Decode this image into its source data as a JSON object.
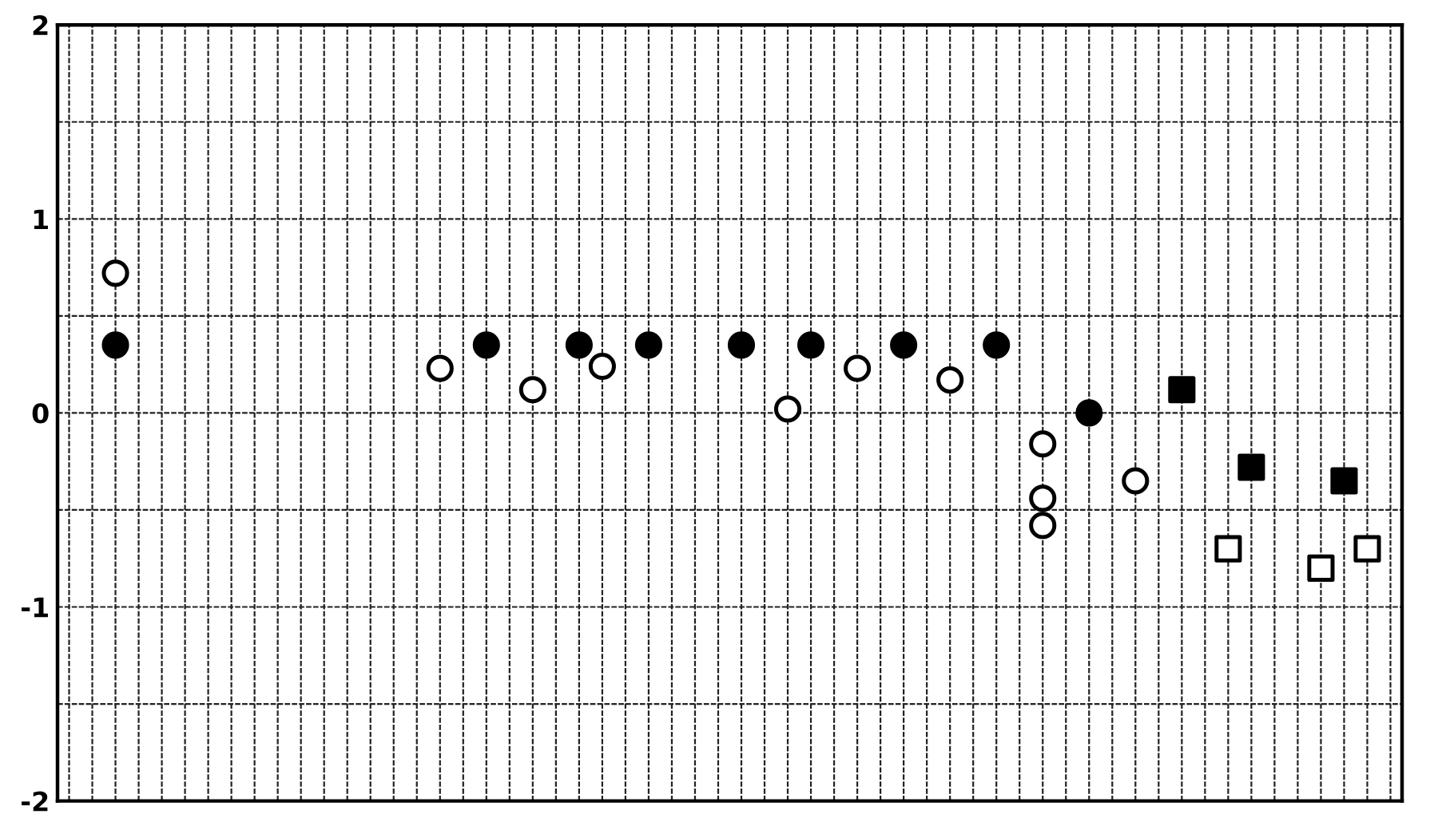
{
  "chart_data": {
    "type": "scatter",
    "categories": [
      null,
      null,
      null,
      null,
      null,
      null,
      null,
      null,
      null,
      null,
      null,
      null,
      null,
      null,
      null,
      null,
      null,
      null,
      null,
      null,
      null,
      null,
      null,
      null,
      null,
      null,
      null,
      null,
      null,
      null,
      null,
      null,
      null,
      null,
      null,
      null,
      null,
      null,
      null,
      null,
      null,
      null,
      null,
      null,
      null,
      null,
      null,
      null,
      null,
      null,
      null,
      null,
      null,
      null,
      null,
      null,
      null,
      null
    ],
    "series": [
      {
        "color": "#000000",
        "marker": "circle",
        "values": [
          null,
          null,
          0.35,
          null,
          null,
          null,
          null,
          null,
          null,
          null,
          null,
          null,
          null,
          null,
          null,
          null,
          null,
          null,
          0.35,
          null,
          null,
          null,
          0.35,
          null,
          null,
          0.35,
          null,
          null,
          null,
          0.35,
          null,
          null,
          0.35,
          null,
          null,
          null,
          0.35,
          null,
          null,
          null,
          0.35,
          null,
          null,
          null,
          0.0,
          null,
          null,
          null,
          null,
          null,
          null,
          null,
          null,
          null,
          null,
          null,
          null,
          null
        ]
      },
      {
        "color": "#000000",
        "marker": "square",
        "values": [
          null,
          null,
          null,
          null,
          null,
          null,
          null,
          null,
          null,
          null,
          null,
          null,
          null,
          null,
          null,
          null,
          null,
          null,
          null,
          null,
          null,
          null,
          null,
          null,
          null,
          null,
          null,
          null,
          null,
          null,
          null,
          null,
          null,
          null,
          null,
          null,
          null,
          null,
          null,
          null,
          null,
          null,
          null,
          null,
          null,
          null,
          null,
          null,
          0.12,
          null,
          null,
          -0.28,
          null,
          null,
          null,
          -0.35,
          null,
          null
        ]
      },
      {
        "color": "#ffffff",
        "marker": "circle",
        "values": [
          null,
          null,
          0.72,
          null,
          null,
          null,
          null,
          null,
          null,
          null,
          null,
          null,
          null,
          null,
          null,
          null,
          0.23,
          null,
          null,
          null,
          0.12,
          null,
          null,
          0.24,
          null,
          null,
          null,
          null,
          null,
          null,
          null,
          0.02,
          null,
          null,
          0.23,
          null,
          null,
          null,
          0.17,
          null,
          null,
          null,
          -0.16,
          null,
          null,
          null,
          -0.35,
          null,
          null,
          null,
          null,
          null,
          null,
          null,
          null,
          null,
          null,
          null
        ]
      },
      {
        "color": "#ffffff",
        "marker": "circle",
        "values": [
          null,
          null,
          null,
          null,
          null,
          null,
          null,
          null,
          null,
          null,
          null,
          null,
          null,
          null,
          null,
          null,
          null,
          null,
          null,
          null,
          null,
          null,
          null,
          null,
          null,
          null,
          null,
          null,
          null,
          null,
          null,
          null,
          null,
          null,
          null,
          null,
          null,
          null,
          null,
          null,
          null,
          null,
          -0.44,
          null,
          null,
          null,
          null,
          null,
          null,
          null,
          null,
          null,
          null,
          null,
          null,
          null,
          null,
          null
        ]
      },
      {
        "color": "#ffffff",
        "marker": "circle",
        "values": [
          null,
          null,
          null,
          null,
          null,
          null,
          null,
          null,
          null,
          null,
          null,
          null,
          null,
          null,
          null,
          null,
          null,
          null,
          null,
          null,
          null,
          null,
          null,
          null,
          null,
          null,
          null,
          null,
          null,
          null,
          null,
          null,
          null,
          null,
          null,
          null,
          null,
          null,
          null,
          null,
          null,
          null,
          -0.58,
          null,
          null,
          null,
          null,
          null,
          null,
          null,
          null,
          null,
          null,
          null,
          null,
          null,
          null,
          null
        ]
      },
      {
        "color": "#ffffff",
        "marker": "square",
        "values": [
          null,
          null,
          null,
          null,
          null,
          null,
          null,
          null,
          null,
          null,
          null,
          null,
          null,
          null,
          null,
          null,
          null,
          null,
          null,
          null,
          null,
          null,
          null,
          null,
          null,
          null,
          null,
          null,
          null,
          null,
          null,
          null,
          null,
          null,
          null,
          null,
          null,
          null,
          null,
          null,
          null,
          null,
          null,
          null,
          null,
          null,
          null,
          null,
          null,
          null,
          -0.7,
          null,
          null,
          null,
          -0.8,
          null,
          -0.7,
          null
        ]
      }
    ],
    "ylim": [
      -2,
      2
    ],
    "yticks": [
      -2,
      {
        "value": -1.5,
        "label": null
      },
      -1,
      {
        "value": -0.5,
        "label": null
      },
      0,
      {
        "value": 0.5,
        "label": null
      },
      1,
      {
        "value": 1.5,
        "label": null
      },
      2
    ],
    "grid": true,
    "tick_labels": "y"
  }
}
